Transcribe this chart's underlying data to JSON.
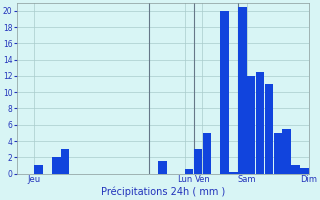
{
  "title": "Précipitations 24h ( mm )",
  "background_color": "#d8f5f5",
  "bar_color": "#1144dd",
  "grid_color": "#aacccc",
  "ylim": [
    0,
    21
  ],
  "yticks": [
    0,
    2,
    4,
    6,
    8,
    10,
    12,
    14,
    16,
    18,
    20
  ],
  "values": [
    0,
    0,
    1,
    0,
    2,
    3,
    0,
    0,
    0,
    0,
    0,
    0,
    0,
    0,
    0,
    0,
    1.5,
    0,
    0,
    0.5,
    3,
    5,
    0,
    20,
    0.2,
    20.5,
    12,
    12.5,
    11,
    5,
    5.5,
    1,
    0.7
  ],
  "day_positions": [
    1.5,
    18.5,
    20.5,
    25.5,
    32.5
  ],
  "day_labels": [
    "Jeu",
    "Lun",
    "Ven",
    "Sam",
    "Dim"
  ],
  "vline_positions": [
    14.5,
    19.5,
    24.5
  ],
  "num_bars": 33
}
